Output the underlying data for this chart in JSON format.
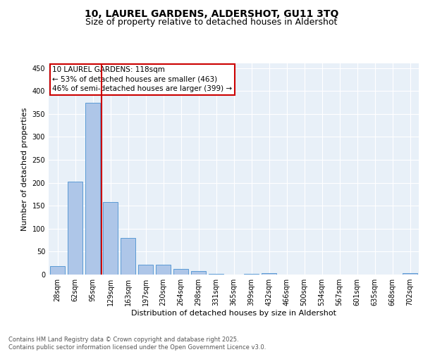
{
  "title1": "10, LAUREL GARDENS, ALDERSHOT, GU11 3TQ",
  "title2": "Size of property relative to detached houses in Aldershot",
  "xlabel": "Distribution of detached houses by size in Aldershot",
  "ylabel": "Number of detached properties",
  "categories": [
    "28sqm",
    "62sqm",
    "95sqm",
    "129sqm",
    "163sqm",
    "197sqm",
    "230sqm",
    "264sqm",
    "298sqm",
    "331sqm",
    "365sqm",
    "399sqm",
    "432sqm",
    "466sqm",
    "500sqm",
    "534sqm",
    "567sqm",
    "601sqm",
    "635sqm",
    "668sqm",
    "702sqm"
  ],
  "values": [
    18,
    202,
    374,
    158,
    79,
    21,
    21,
    13,
    8,
    2,
    0,
    1,
    3,
    0,
    0,
    0,
    0,
    0,
    0,
    0,
    3
  ],
  "bar_color": "#aec6e8",
  "bar_edge_color": "#5b9bd5",
  "bg_color": "#e8f0f8",
  "grid_color": "#ffffff",
  "vline_color": "#cc0000",
  "annotation_box_color": "#cc0000",
  "ylim": [
    0,
    460
  ],
  "yticks": [
    0,
    50,
    100,
    150,
    200,
    250,
    300,
    350,
    400,
    450
  ],
  "footer": "Contains HM Land Registry data © Crown copyright and database right 2025.\nContains public sector information licensed under the Open Government Licence v3.0.",
  "title1_fontsize": 10,
  "title2_fontsize": 9,
  "tick_fontsize": 7,
  "ylabel_fontsize": 8,
  "xlabel_fontsize": 8,
  "annotation_fontsize": 7.5,
  "footer_fontsize": 6,
  "vline_pos": 2.5
}
